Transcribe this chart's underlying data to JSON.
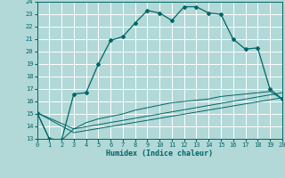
{
  "xlabel": "Humidex (Indice chaleur)",
  "bg_color": "#b2d8d8",
  "grid_color": "#ffffff",
  "line_color": "#006666",
  "xlim": [
    0,
    20
  ],
  "ylim": [
    13,
    24
  ],
  "xticks": [
    0,
    1,
    2,
    3,
    4,
    5,
    6,
    7,
    8,
    9,
    10,
    11,
    12,
    13,
    14,
    15,
    16,
    17,
    18,
    19,
    20
  ],
  "yticks": [
    13,
    14,
    15,
    16,
    17,
    18,
    19,
    20,
    21,
    22,
    23,
    24
  ],
  "curve1_x": [
    0,
    1,
    2,
    3,
    4,
    5,
    6,
    7,
    8,
    9,
    10,
    11,
    12,
    13,
    14,
    15,
    16,
    17,
    18,
    19,
    20
  ],
  "curve1_y": [
    15.1,
    13.0,
    12.9,
    16.6,
    16.7,
    19.0,
    20.9,
    21.2,
    22.3,
    23.3,
    23.1,
    22.5,
    23.6,
    23.6,
    23.1,
    23.0,
    21.0,
    20.2,
    20.3,
    17.0,
    16.2
  ],
  "curve2_x": [
    0,
    1,
    2,
    3,
    4,
    5,
    6,
    7,
    8,
    9,
    10,
    11,
    12,
    13,
    14,
    15,
    16,
    17,
    18,
    19,
    20
  ],
  "curve2_y": [
    15.1,
    13.0,
    12.9,
    13.8,
    14.3,
    14.6,
    14.8,
    15.0,
    15.3,
    15.5,
    15.7,
    15.9,
    16.0,
    16.1,
    16.2,
    16.4,
    16.5,
    16.6,
    16.7,
    16.8,
    16.2
  ],
  "curve3_x": [
    0,
    3,
    20
  ],
  "curve3_y": [
    15.1,
    13.8,
    16.7
  ],
  "curve4_x": [
    0,
    3,
    20
  ],
  "curve4_y": [
    15.1,
    13.5,
    16.3
  ]
}
